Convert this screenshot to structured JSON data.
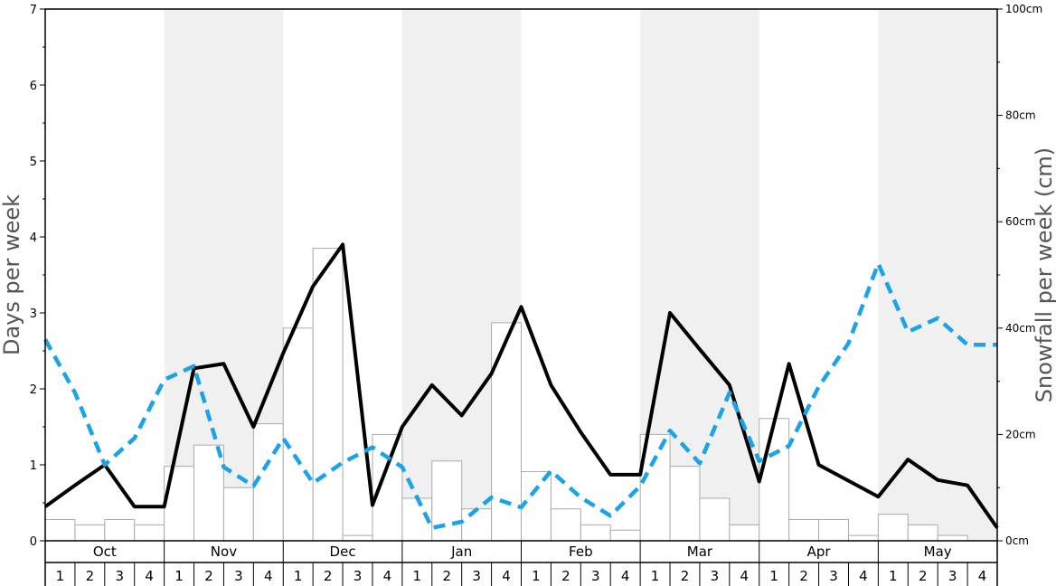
{
  "chart_data": {
    "type": "bar",
    "xlabel": "",
    "ylabel_left": "Days per week",
    "ylabel_right": "Snowfall per week (cm)",
    "ylim_left": [
      0,
      7
    ],
    "ylim_right": [
      0,
      100
    ],
    "left_ticks": [
      "0",
      "1",
      "2",
      "3",
      "4",
      "5",
      "6",
      "7"
    ],
    "right_ticks": [
      "0cm",
      "20cm",
      "40cm",
      "60cm",
      "80cm",
      "100cm"
    ],
    "right_tick_values": [
      0,
      20,
      40,
      60,
      80,
      100
    ],
    "months": [
      "Oct",
      "Nov",
      "Dec",
      "Jan",
      "Feb",
      "Mar",
      "Apr",
      "May"
    ],
    "weeks": [
      "1",
      "2",
      "3",
      "4"
    ],
    "shaded_months": [
      1,
      3,
      5,
      7
    ],
    "colors": {
      "shade": "#f0f0f0",
      "bar_fill": "#ffffff",
      "bar_stroke": "#aaaaaa",
      "solid_line": "#000000",
      "dashed_line": "#1aa3e8"
    },
    "series": [
      {
        "kind": "bar",
        "axis": "right",
        "values": [
          4,
          3,
          4,
          3,
          14,
          18,
          10,
          22,
          40,
          55,
          1,
          20,
          8,
          15,
          6,
          41,
          13,
          6,
          3,
          2,
          20,
          14,
          8,
          3,
          23,
          4,
          4,
          1,
          5,
          3,
          1,
          0
        ]
      },
      {
        "kind": "line",
        "style": "solid",
        "axis": "left",
        "values": [
          0.45,
          0.73,
          1.0,
          0.45,
          0.45,
          2.27,
          2.33,
          1.5,
          2.47,
          3.35,
          3.9,
          0.47,
          1.5,
          2.05,
          1.65,
          2.2,
          3.08,
          2.05,
          1.43,
          0.87,
          0.87,
          3.0,
          2.52,
          2.05,
          0.78,
          2.33,
          1.0,
          0.79,
          0.58,
          1.07,
          0.8,
          0.73,
          0.17
        ]
      },
      {
        "kind": "line",
        "style": "dashed",
        "axis": "left",
        "values": [
          2.65,
          1.95,
          1.0,
          1.35,
          2.12,
          2.3,
          0.97,
          0.72,
          1.35,
          0.76,
          1.03,
          1.23,
          0.97,
          0.17,
          0.25,
          0.57,
          0.44,
          0.92,
          0.57,
          0.33,
          0.72,
          1.45,
          1.02,
          1.95,
          1.05,
          1.25,
          2.03,
          2.6,
          3.65,
          2.75,
          2.93,
          2.58,
          2.58
        ]
      }
    ]
  }
}
